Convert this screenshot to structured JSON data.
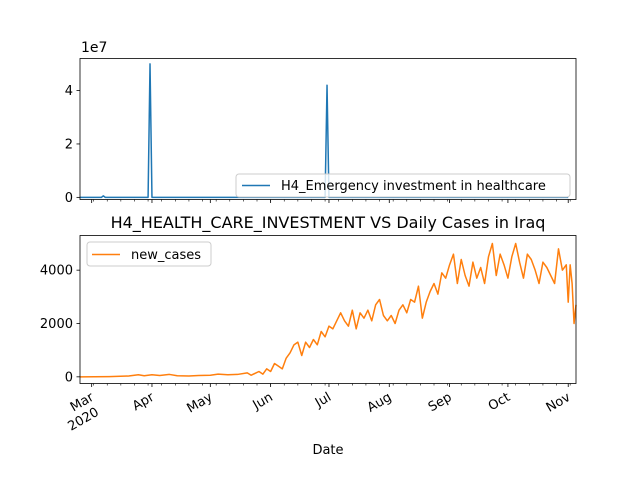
{
  "chart_data": [
    {
      "type": "line",
      "title": "",
      "xlabel": "",
      "ylabel": "",
      "y_offset_label": "1e7",
      "ylim": [
        -800000,
        52000000
      ],
      "yticks": [
        0,
        2,
        4
      ],
      "grid": false,
      "legend_placement": "bottom-right",
      "series": [
        {
          "name": "H4_Emergency investment in healthcare",
          "color": "#1f77b4",
          "points": [
            [
              "2020-02-24",
              0
            ],
            [
              "2020-03-06",
              0
            ],
            [
              "2020-03-07",
              550000
            ],
            [
              "2020-03-08",
              0
            ],
            [
              "2020-03-30",
              0
            ],
            [
              "2020-03-31",
              50000000
            ],
            [
              "2020-04-01",
              0
            ],
            [
              "2020-06-29",
              0
            ],
            [
              "2020-06-30",
              42000000
            ],
            [
              "2020-07-01",
              0
            ],
            [
              "2020-11-01",
              0
            ]
          ]
        }
      ]
    },
    {
      "type": "line",
      "title": "H4_HEALTH_CARE_INVESTMENT VS Daily Cases in Iraq",
      "xlabel": "Date",
      "ylabel": "",
      "ylim": [
        -250,
        5300
      ],
      "yticks": [
        0,
        2000,
        4000
      ],
      "grid": false,
      "legend_placement": "top-left",
      "x_tick_labels": [
        {
          "date": "2020-03-01",
          "label": "Mar",
          "sub": "2020"
        },
        {
          "date": "2020-04-01",
          "label": "Apr"
        },
        {
          "date": "2020-05-01",
          "label": "May"
        },
        {
          "date": "2020-06-01",
          "label": "Jun"
        },
        {
          "date": "2020-07-01",
          "label": "Jul"
        },
        {
          "date": "2020-08-01",
          "label": "Aug"
        },
        {
          "date": "2020-09-01",
          "label": "Sep"
        },
        {
          "date": "2020-10-01",
          "label": "Oct"
        },
        {
          "date": "2020-11-01",
          "label": "Nov"
        }
      ],
      "series": [
        {
          "name": "new_cases",
          "color": "#ff7f0e",
          "points": [
            [
              "2020-02-24",
              0
            ],
            [
              "2020-03-10",
              10
            ],
            [
              "2020-03-20",
              30
            ],
            [
              "2020-03-25",
              80
            ],
            [
              "2020-03-28",
              40
            ],
            [
              "2020-04-01",
              80
            ],
            [
              "2020-04-05",
              50
            ],
            [
              "2020-04-10",
              90
            ],
            [
              "2020-04-14",
              40
            ],
            [
              "2020-04-20",
              30
            ],
            [
              "2020-04-25",
              50
            ],
            [
              "2020-05-01",
              60
            ],
            [
              "2020-05-05",
              100
            ],
            [
              "2020-05-10",
              80
            ],
            [
              "2020-05-15",
              90
            ],
            [
              "2020-05-20",
              150
            ],
            [
              "2020-05-22",
              60
            ],
            [
              "2020-05-26",
              200
            ],
            [
              "2020-05-28",
              100
            ],
            [
              "2020-05-30",
              300
            ],
            [
              "2020-06-01",
              200
            ],
            [
              "2020-06-03",
              500
            ],
            [
              "2020-06-05",
              400
            ],
            [
              "2020-06-07",
              300
            ],
            [
              "2020-06-09",
              700
            ],
            [
              "2020-06-11",
              900
            ],
            [
              "2020-06-13",
              1200
            ],
            [
              "2020-06-15",
              1300
            ],
            [
              "2020-06-17",
              800
            ],
            [
              "2020-06-19",
              1300
            ],
            [
              "2020-06-21",
              1100
            ],
            [
              "2020-06-23",
              1400
            ],
            [
              "2020-06-25",
              1200
            ],
            [
              "2020-06-27",
              1700
            ],
            [
              "2020-06-29",
              1500
            ],
            [
              "2020-07-01",
              1900
            ],
            [
              "2020-07-03",
              1800
            ],
            [
              "2020-07-05",
              2100
            ],
            [
              "2020-07-07",
              2400
            ],
            [
              "2020-07-09",
              2100
            ],
            [
              "2020-07-11",
              1900
            ],
            [
              "2020-07-13",
              2500
            ],
            [
              "2020-07-15",
              1800
            ],
            [
              "2020-07-17",
              2400
            ],
            [
              "2020-07-19",
              2200
            ],
            [
              "2020-07-21",
              2500
            ],
            [
              "2020-07-23",
              2100
            ],
            [
              "2020-07-25",
              2700
            ],
            [
              "2020-07-27",
              2900
            ],
            [
              "2020-07-29",
              2300
            ],
            [
              "2020-07-31",
              2100
            ],
            [
              "2020-08-02",
              2300
            ],
            [
              "2020-08-04",
              2000
            ],
            [
              "2020-08-06",
              2500
            ],
            [
              "2020-08-08",
              2700
            ],
            [
              "2020-08-10",
              2400
            ],
            [
              "2020-08-12",
              2900
            ],
            [
              "2020-08-14",
              2800
            ],
            [
              "2020-08-16",
              3400
            ],
            [
              "2020-08-18",
              2200
            ],
            [
              "2020-08-20",
              2800
            ],
            [
              "2020-08-22",
              3200
            ],
            [
              "2020-08-24",
              3500
            ],
            [
              "2020-08-26",
              3100
            ],
            [
              "2020-08-28",
              3900
            ],
            [
              "2020-08-30",
              3700
            ],
            [
              "2020-09-01",
              4200
            ],
            [
              "2020-09-03",
              4600
            ],
            [
              "2020-09-05",
              3500
            ],
            [
              "2020-09-07",
              4400
            ],
            [
              "2020-09-09",
              3800
            ],
            [
              "2020-09-11",
              3400
            ],
            [
              "2020-09-13",
              4300
            ],
            [
              "2020-09-15",
              3700
            ],
            [
              "2020-09-17",
              4100
            ],
            [
              "2020-09-19",
              3500
            ],
            [
              "2020-09-21",
              4500
            ],
            [
              "2020-09-23",
              5000
            ],
            [
              "2020-09-25",
              3800
            ],
            [
              "2020-09-27",
              4600
            ],
            [
              "2020-09-29",
              4200
            ],
            [
              "2020-10-01",
              3700
            ],
            [
              "2020-10-03",
              4500
            ],
            [
              "2020-10-05",
              5000
            ],
            [
              "2020-10-07",
              4300
            ],
            [
              "2020-10-09",
              3700
            ],
            [
              "2020-10-11",
              4600
            ],
            [
              "2020-10-13",
              4400
            ],
            [
              "2020-10-15",
              4000
            ],
            [
              "2020-10-17",
              3500
            ],
            [
              "2020-10-19",
              4300
            ],
            [
              "2020-10-21",
              4100
            ],
            [
              "2020-10-23",
              3800
            ],
            [
              "2020-10-25",
              3500
            ],
            [
              "2020-10-27",
              4800
            ],
            [
              "2020-10-29",
              4000
            ],
            [
              "2020-10-31",
              4200
            ],
            [
              "2020-11-01",
              2800
            ],
            [
              "2020-11-02",
              4200
            ],
            [
              "2020-11-03",
              3500
            ],
            [
              "2020-11-04",
              2000
            ],
            [
              "2020-11-05",
              2700
            ]
          ]
        }
      ]
    }
  ]
}
